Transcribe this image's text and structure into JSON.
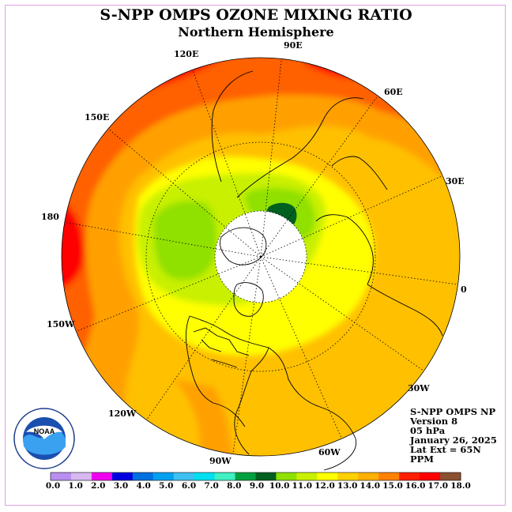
{
  "title": "S-NPP OMPS OZONE MIXING RATIO",
  "subtitle": "Northern Hemisphere",
  "longitude_labels": [
    "90E",
    "60E",
    "30E",
    "0",
    "30W",
    "60W",
    "90W",
    "120W",
    "150W",
    "180",
    "150E",
    "120E"
  ],
  "info": [
    "S-NPP OMPS NP",
    "Version 8",
    "05 hPa",
    "January 26, 2025",
    "Lat Ext = 65N",
    "PPM"
  ],
  "logo": {
    "text": "NOAA",
    "ring_text": "NATIONAL OCEANIC AND ATMOSPHERIC ADMINISTRATION · U.S. DEPARTMENT OF COMMERCE"
  },
  "colorbar": {
    "labels": [
      "0.0",
      "1.0",
      "2.0",
      "3.0",
      "4.0",
      "5.0",
      "6.0",
      "7.0",
      "8.0",
      "9.0",
      "10.0",
      "11.0",
      "12.0",
      "13.0",
      "14.0",
      "15.0",
      "16.0",
      "17.0",
      "18.0"
    ],
    "colors": [
      "#b88ff0",
      "#d8b8f0",
      "#f000f0",
      "#0000e0",
      "#0070e0",
      "#00a0f0",
      "#40c0f0",
      "#00e0f0",
      "#40f0c0",
      "#00a040",
      "#006020",
      "#90e000",
      "#c8f000",
      "#ffff00",
      "#ffd000",
      "#ffb000",
      "#ff8000",
      "#ff2000",
      "#ff0000",
      "#8b5030"
    ]
  },
  "map_colors": {
    "gt17": "#ff0000",
    "16_17": "#ff6000",
    "15_16": "#ffa000",
    "14_15": "#ffc000",
    "13_14": "#ffff00",
    "12_13": "#c8f000",
    "11_12": "#90e000",
    "10_11": "#006020",
    "no_data": "#ffffff"
  }
}
